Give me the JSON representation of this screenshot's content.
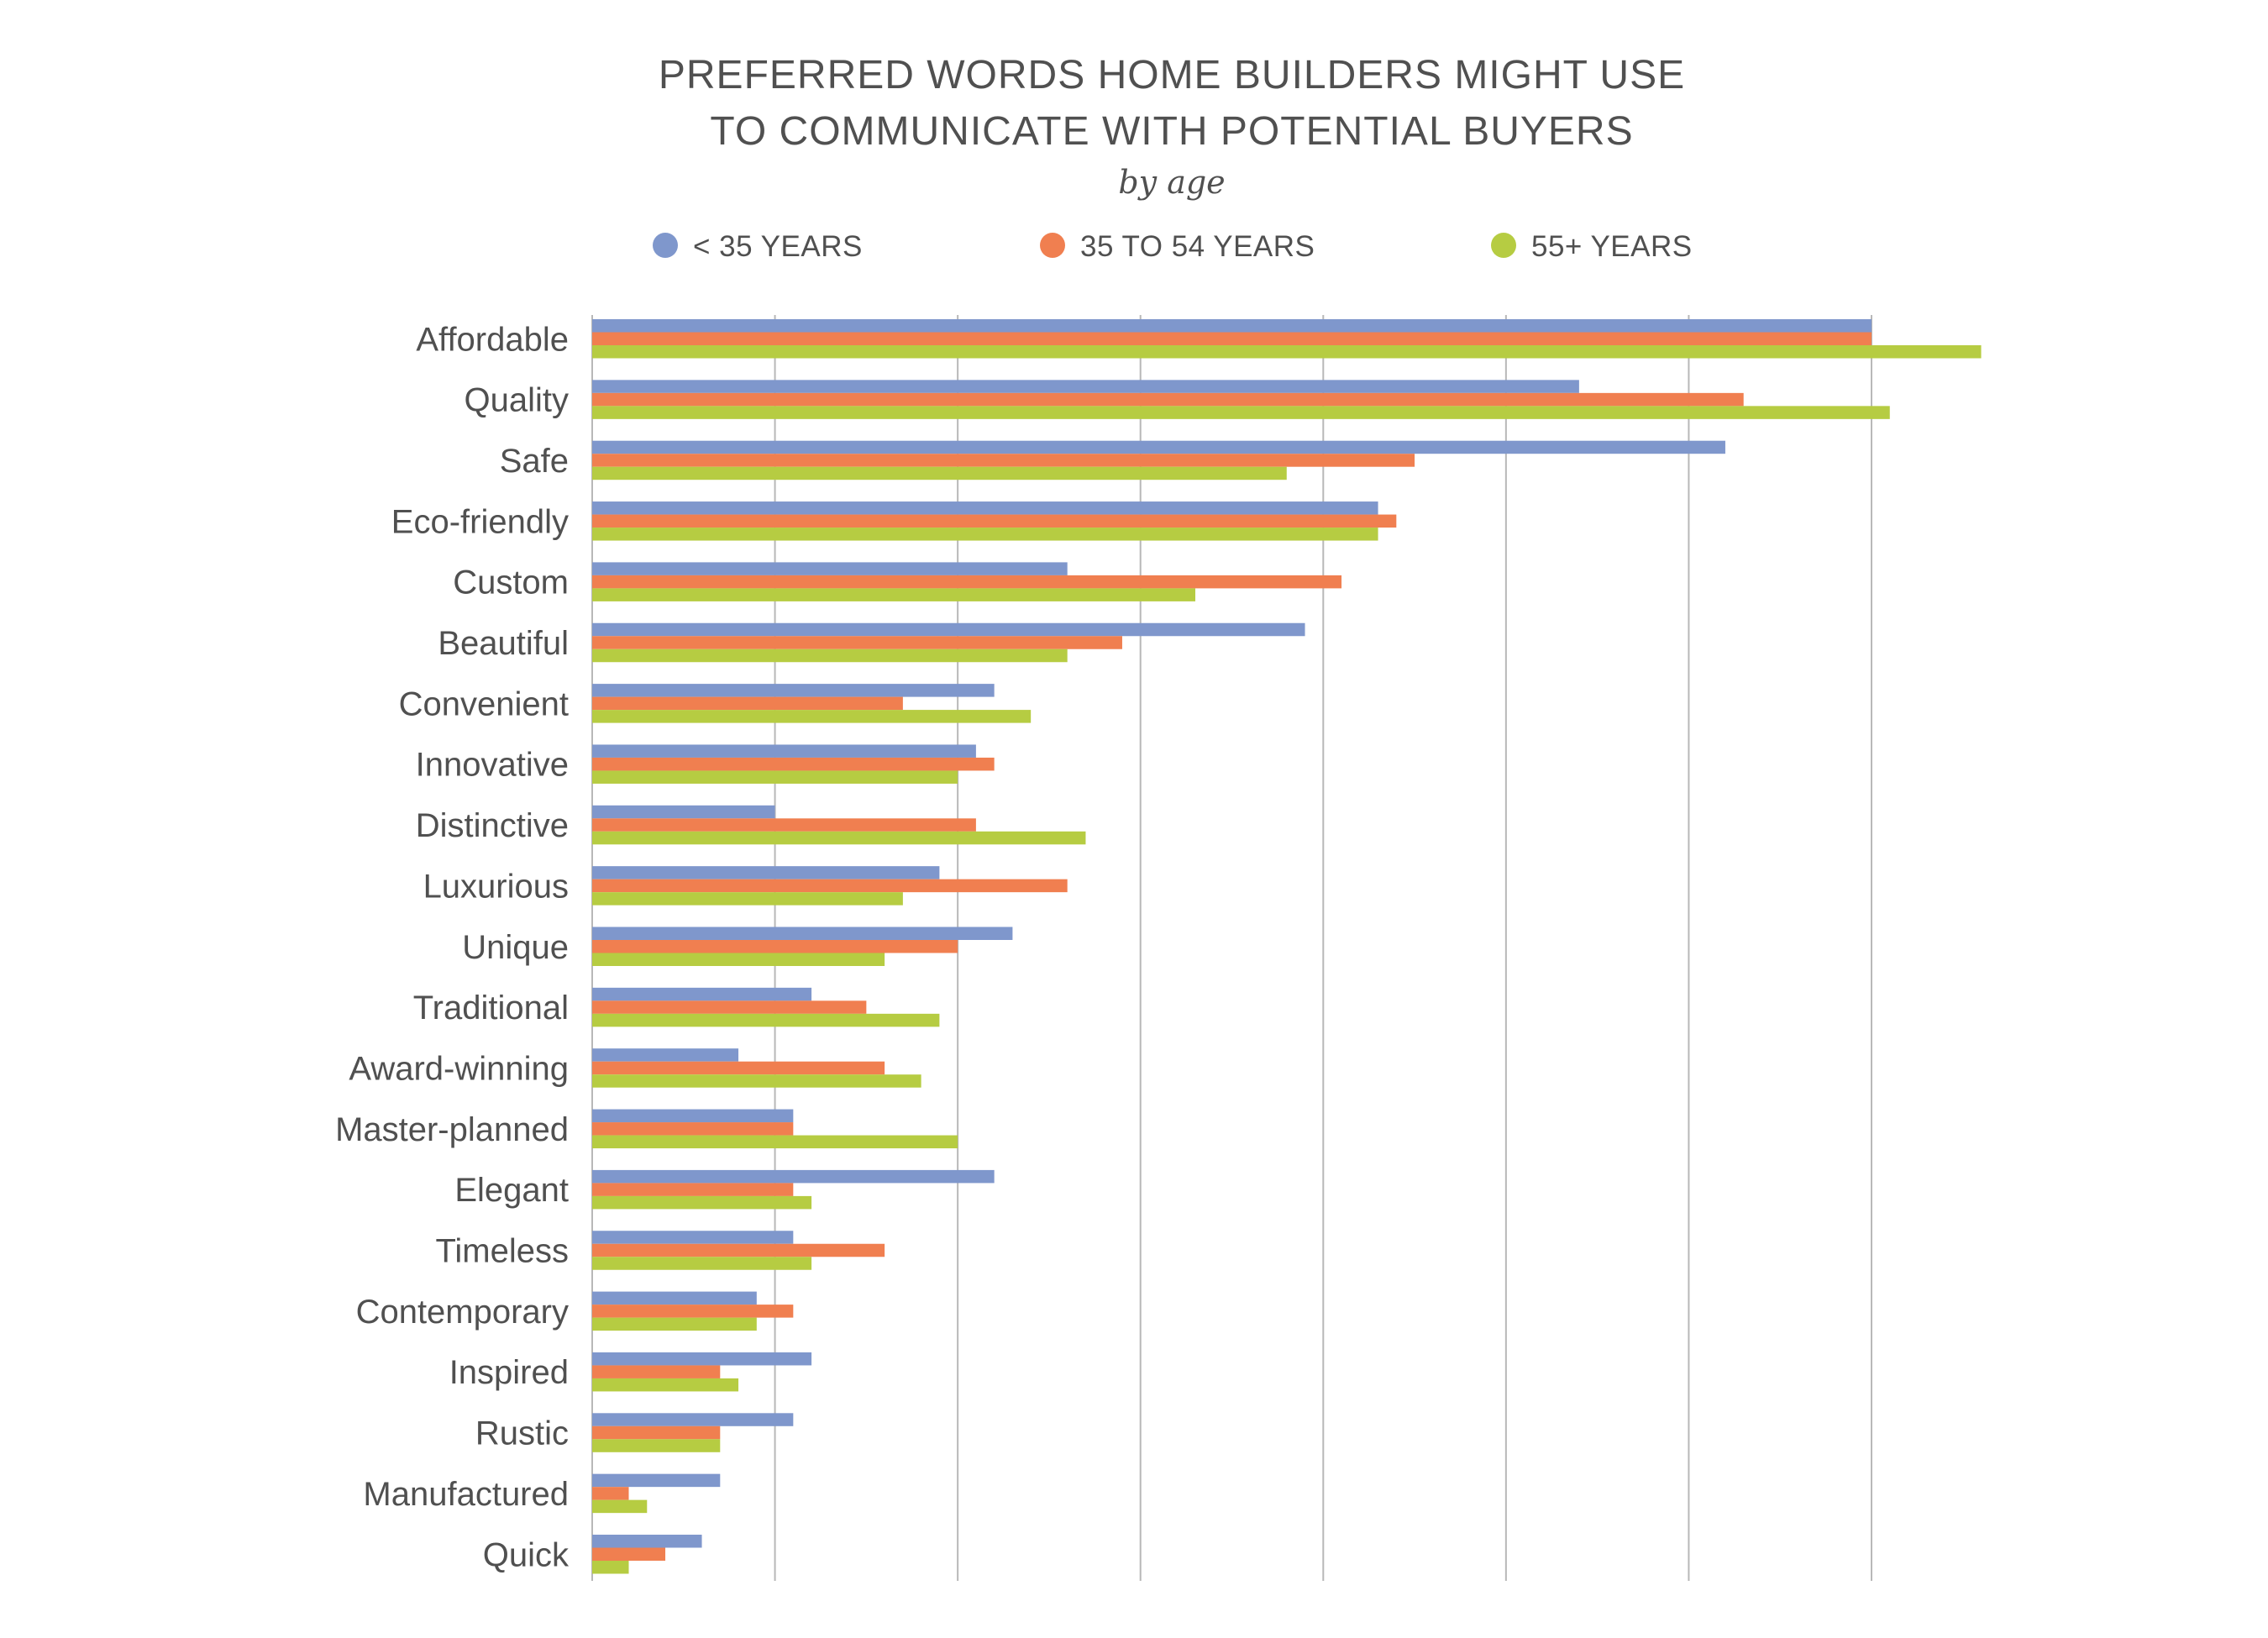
{
  "chart_data": {
    "type": "bar",
    "orientation": "horizontal",
    "title_lines": [
      "PREFERRED WORDS HOME BUILDERS MIGHT USE",
      "TO COMMUNICATE WITH POTENTIAL BUYERS"
    ],
    "subtitle": "by age",
    "xlabel": "",
    "ylabel": "",
    "xlim": [
      0,
      80
    ],
    "grid_step": 10,
    "grid": true,
    "tick_labels_shown": false,
    "legend_position": "top",
    "categories": [
      "Affordable",
      "Quality",
      "Safe",
      "Eco-friendly",
      "Custom",
      "Beautiful",
      "Convenient",
      "Innovative",
      "Distinctive",
      "Luxurious",
      "Unique",
      "Traditional",
      "Award-winning",
      "Master-planned",
      "Elegant",
      "Timeless",
      "Contemporary",
      "Inspired",
      "Rustic",
      "Manufactured",
      "Quick"
    ],
    "series": [
      {
        "name": "< 35 YEARS",
        "color": "#7f97cc",
        "values": [
          70,
          54,
          62,
          43,
          26,
          39,
          22,
          21,
          10,
          19,
          23,
          12,
          8,
          11,
          22,
          11,
          9,
          12,
          11,
          7,
          6
        ]
      },
      {
        "name": "35 TO 54 YEARS",
        "color": "#f07f50",
        "values": [
          70,
          63,
          45,
          44,
          41,
          29,
          17,
          22,
          21,
          26,
          20,
          15,
          16,
          11,
          11,
          16,
          11,
          7,
          7,
          2,
          4
        ]
      },
      {
        "name": "55+ YEARS",
        "color": "#b6cc42",
        "values": [
          76,
          71,
          38,
          43,
          33,
          26,
          24,
          20,
          27,
          17,
          16,
          19,
          18,
          20,
          12,
          12,
          9,
          8,
          7,
          3,
          2
        ]
      }
    ]
  }
}
